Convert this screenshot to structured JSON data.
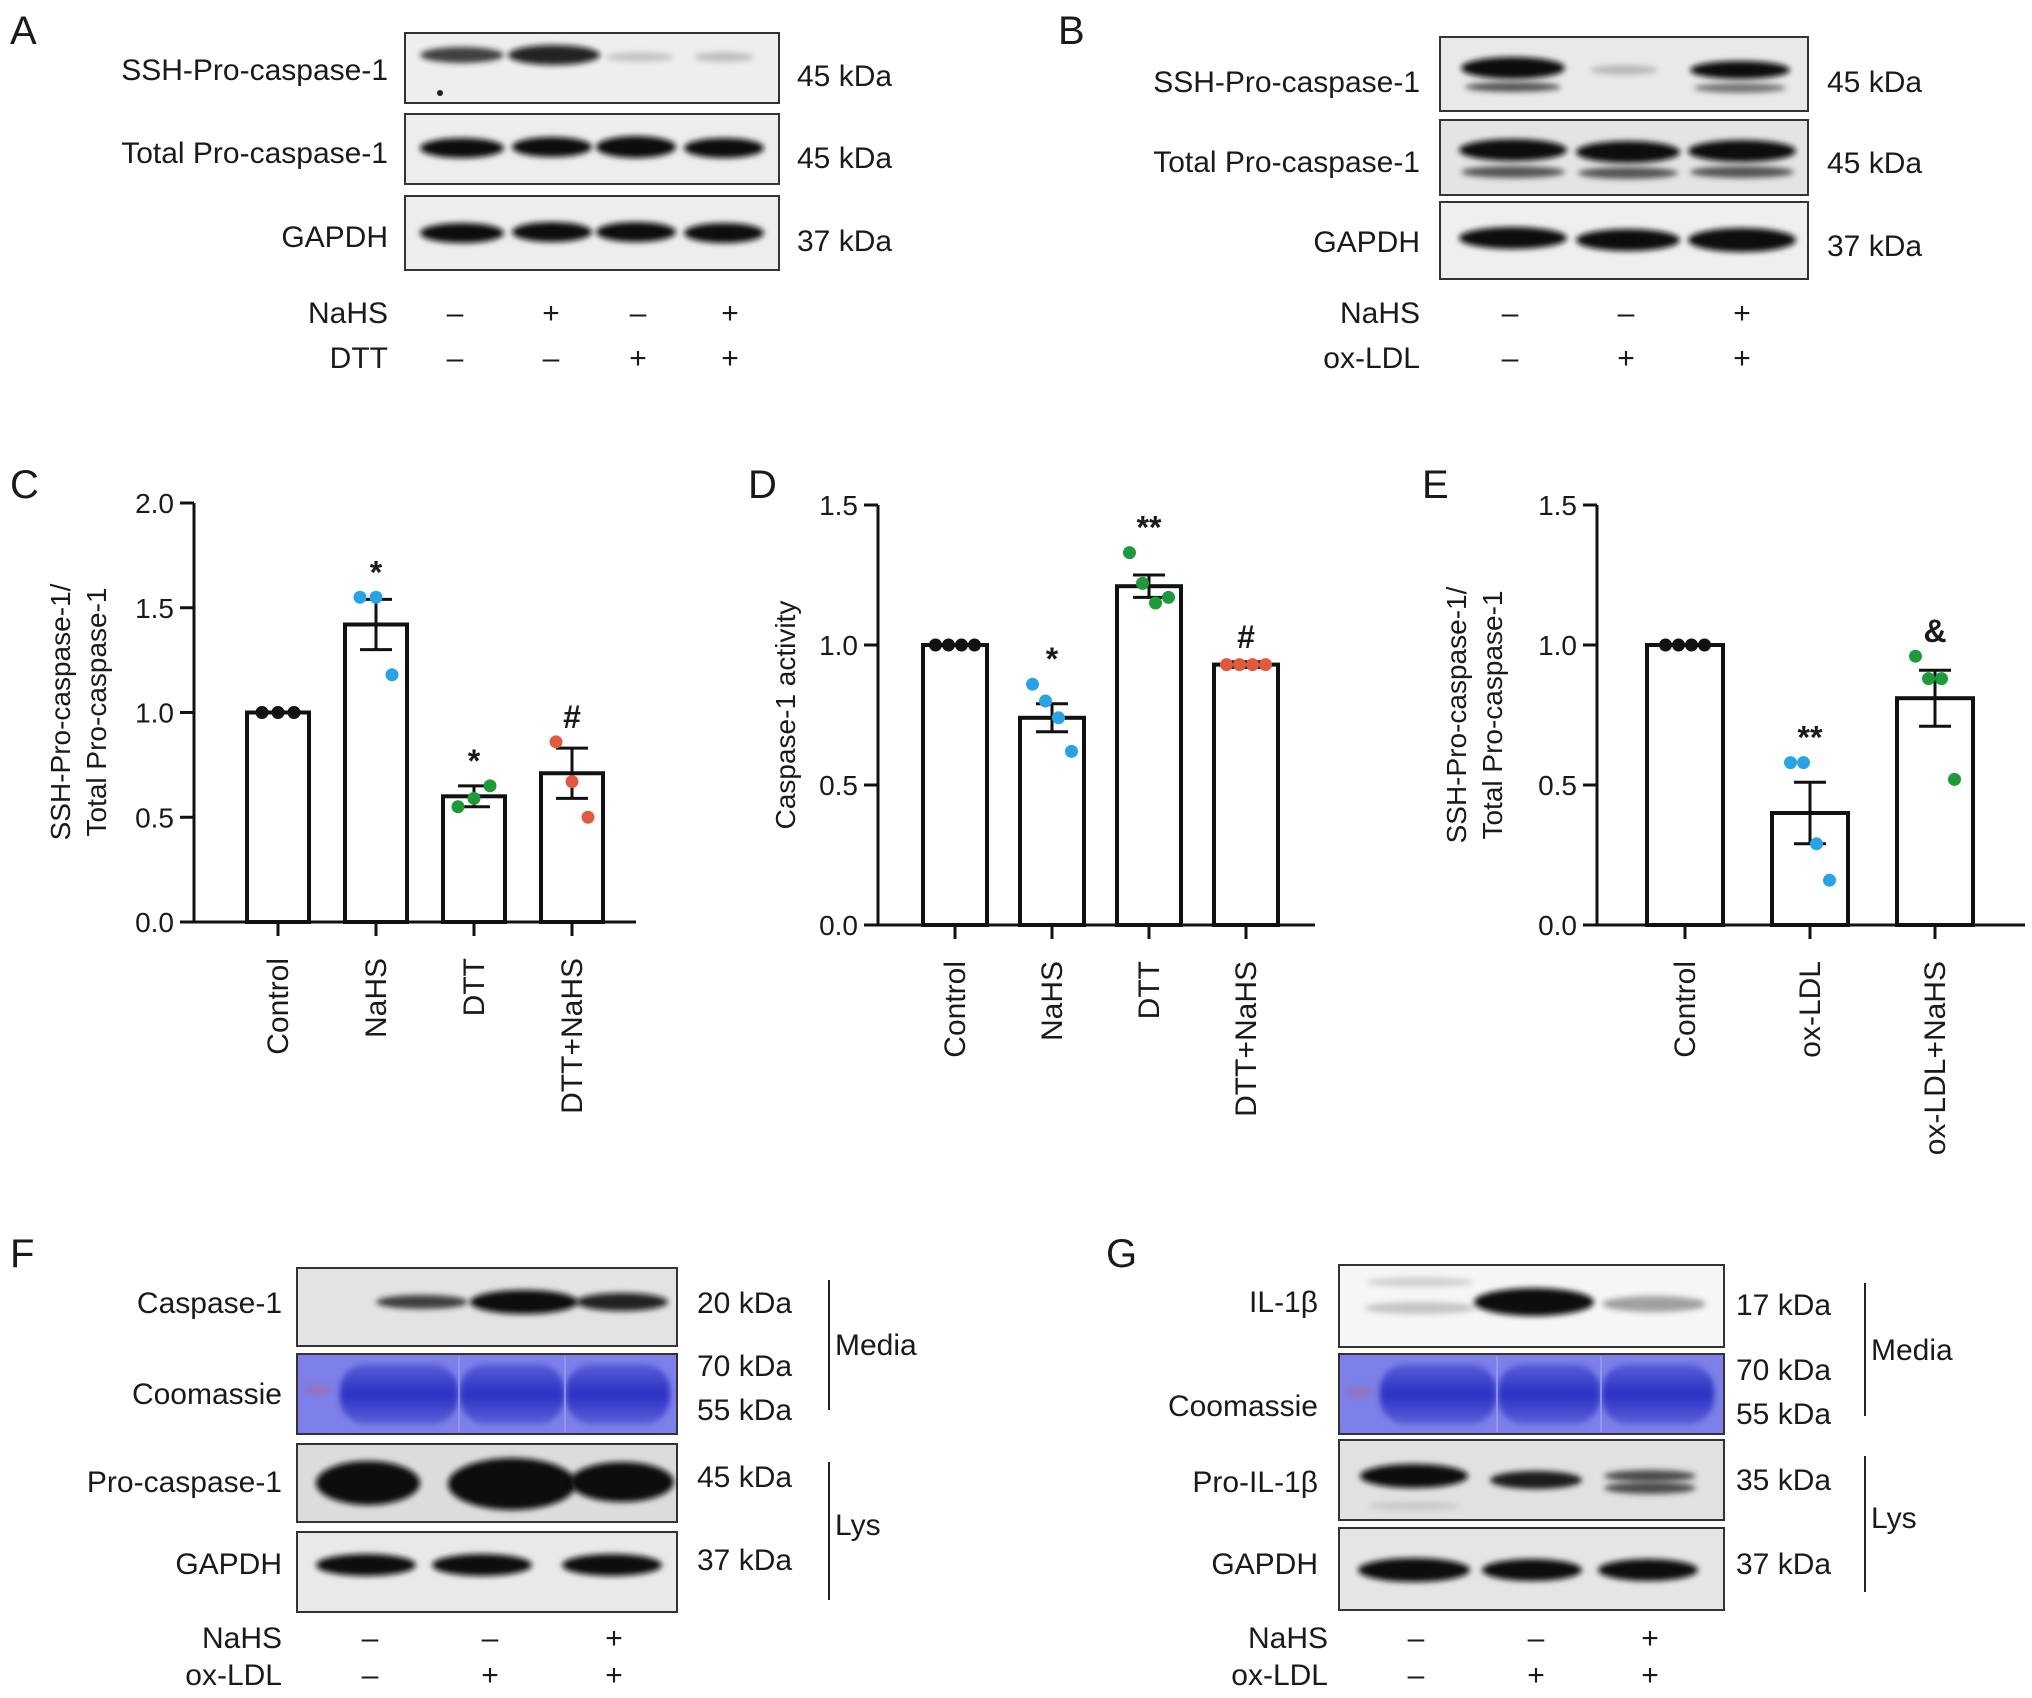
{
  "panels": {
    "A": {
      "letter": "A",
      "rows": [
        {
          "label": "SSH-Pro-caspase-1",
          "kda": "45 kDa"
        },
        {
          "label": "Total Pro-caspase-1",
          "kda": "45 kDa"
        },
        {
          "label": "GAPDH",
          "kda": "37 kDa"
        }
      ],
      "treatments": [
        {
          "name": "NaHS",
          "signs": [
            "–",
            "+",
            "–",
            "+"
          ]
        },
        {
          "name": "DTT",
          "signs": [
            "–",
            "–",
            "+",
            "+"
          ]
        }
      ]
    },
    "B": {
      "letter": "B",
      "rows": [
        {
          "label": "SSH-Pro-caspase-1",
          "kda": "45 kDa"
        },
        {
          "label": "Total Pro-caspase-1",
          "kda": "45 kDa"
        },
        {
          "label": "GAPDH",
          "kda": "37 kDa"
        }
      ],
      "treatments": [
        {
          "name": "NaHS",
          "signs": [
            "–",
            "–",
            "+"
          ]
        },
        {
          "name": "ox-LDL",
          "signs": [
            "–",
            "+",
            "+"
          ]
        }
      ]
    },
    "F": {
      "letter": "F",
      "rows": [
        {
          "label": "Caspase-1",
          "kda": "20 kDa"
        },
        {
          "label": "Coomassie",
          "kda": "70 kDa",
          "kda2": "55 kDa"
        },
        {
          "label": "Pro-caspase-1",
          "kda": "45 kDa"
        },
        {
          "label": "GAPDH",
          "kda": "37 kDa"
        }
      ],
      "groups": [
        "Media",
        "Lys"
      ],
      "treatments": [
        {
          "name": "NaHS",
          "signs": [
            "–",
            "–",
            "+"
          ]
        },
        {
          "name": "ox-LDL",
          "signs": [
            "–",
            "+",
            "+"
          ]
        }
      ]
    },
    "G": {
      "letter": "G",
      "rows": [
        {
          "label": "IL-1β",
          "kda": "17 kDa"
        },
        {
          "label": "Coomassie",
          "kda": "70 kDa",
          "kda2": "55 kDa"
        },
        {
          "label": "Pro-IL-1β",
          "kda": "35 kDa"
        },
        {
          "label": "GAPDH",
          "kda": "37 kDa"
        }
      ],
      "groups": [
        "Media",
        "Lys"
      ],
      "treatments": [
        {
          "name": "NaHS",
          "signs": [
            "–",
            "–",
            "+"
          ]
        },
        {
          "name": "ox-LDL",
          "signs": [
            "–",
            "+",
            "+"
          ]
        }
      ]
    }
  },
  "colors": {
    "blue": "#29a3e6",
    "green": "#1f9a3a",
    "red": "#e05a40",
    "coomassie": "#3a3ec4"
  },
  "chart_data": [
    {
      "panel": "C",
      "type": "bar",
      "title": "",
      "ylabel": "SSH-Pro-caspase-1/",
      "ylabel2": "Total Pro-caspase-1",
      "categories": [
        "Control",
        "NaHS",
        "DTT",
        "DTT+NaHS"
      ],
      "values": [
        1.0,
        1.42,
        0.6,
        0.71
      ],
      "errors": [
        0,
        0.12,
        0.05,
        0.12
      ],
      "points": [
        [
          1.0,
          1.0,
          1.0
        ],
        [
          1.55,
          1.55,
          1.18
        ],
        [
          0.55,
          0.59,
          0.65
        ],
        [
          0.86,
          0.67,
          0.5
        ]
      ],
      "point_colors": [
        "#111111",
        "#29a3e6",
        "#1f9a3a",
        "#e05a40"
      ],
      "annotations": [
        "",
        "*",
        "*",
        "#"
      ],
      "ylim": [
        0,
        2.0
      ],
      "yticks": [
        "0.0",
        "0.5",
        "1.0",
        "1.5",
        "2.0"
      ]
    },
    {
      "panel": "D",
      "type": "bar",
      "title": "",
      "ylabel": "Caspase-1 activity",
      "ylabel2": "",
      "categories": [
        "Control",
        "NaHS",
        "DTT",
        "DTT+NaHS"
      ],
      "values": [
        1.0,
        0.74,
        1.21,
        0.93
      ],
      "errors": [
        0,
        0.05,
        0.04,
        0.01
      ],
      "points": [
        [
          1.0,
          1.0,
          1.0,
          1.0
        ],
        [
          0.86,
          0.8,
          0.74,
          0.62
        ],
        [
          1.33,
          1.22,
          1.15,
          1.17
        ],
        [
          0.93,
          0.93,
          0.93,
          0.93
        ]
      ],
      "point_colors": [
        "#111111",
        "#29a3e6",
        "#1f9a3a",
        "#e05a40"
      ],
      "annotations": [
        "",
        "*",
        "**",
        "#"
      ],
      "ylim": [
        0,
        1.5
      ],
      "yticks": [
        "0.0",
        "0.5",
        "1.0",
        "1.5"
      ]
    },
    {
      "panel": "E",
      "type": "bar",
      "title": "",
      "ylabel": "SSH-Pro-caspase-1/",
      "ylabel2": "Total Pro-caspase-1",
      "categories": [
        "Control",
        "ox-LDL",
        "ox-LDL+NaHS"
      ],
      "values": [
        1.0,
        0.4,
        0.81
      ],
      "errors": [
        0,
        0.11,
        0.1
      ],
      "points": [
        [
          1.0,
          1.0,
          1.0,
          1.0
        ],
        [
          0.58,
          0.58,
          0.29,
          0.16
        ],
        [
          0.96,
          0.88,
          0.88,
          0.52
        ]
      ],
      "point_colors": [
        "#111111",
        "#29a3e6",
        "#1f9a3a"
      ],
      "annotations": [
        "",
        "**",
        "&"
      ],
      "ylim": [
        0,
        1.5
      ],
      "yticks": [
        "0.0",
        "0.5",
        "1.0",
        "1.5"
      ]
    }
  ]
}
